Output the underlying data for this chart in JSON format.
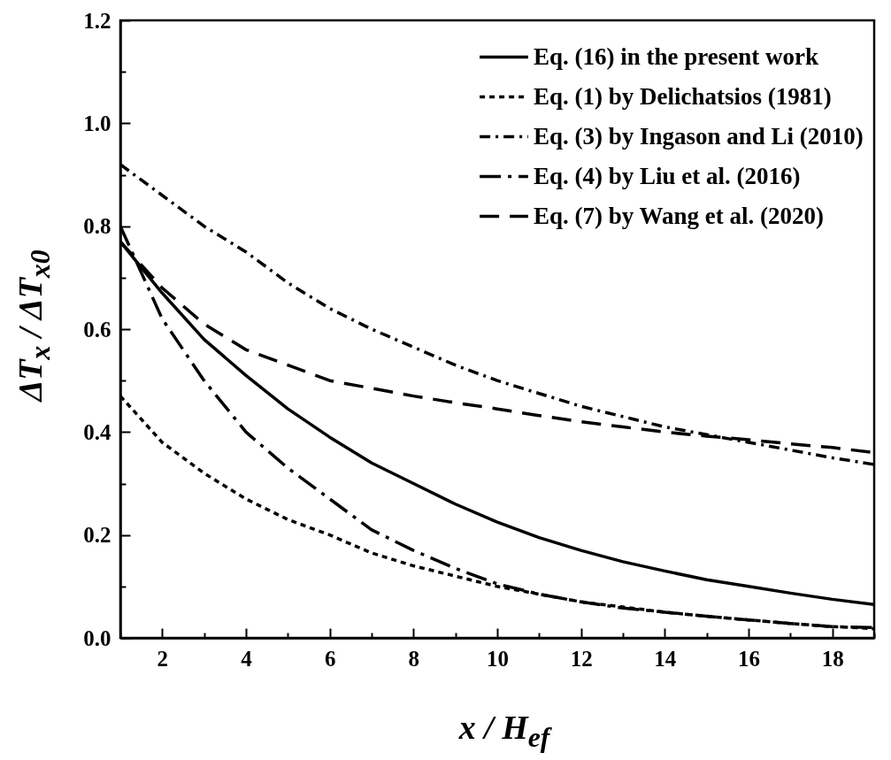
{
  "chart_data": {
    "type": "line",
    "xlabel": "x / H$_{ef}$",
    "ylabel": "ΔT$_{x}$ / ΔT$_{x0}$",
    "xlim": [
      1,
      19
    ],
    "ylim": [
      0,
      1.2
    ],
    "xticks": [
      {
        "value": 1,
        "label": null
      },
      2,
      {
        "value": 3,
        "label": null
      },
      4,
      {
        "value": 5,
        "label": null
      },
      6,
      {
        "value": 7,
        "label": null
      },
      8,
      {
        "value": 9,
        "label": null
      },
      10,
      {
        "value": 11,
        "label": null
      },
      12,
      {
        "value": 13,
        "label": null
      },
      14,
      {
        "value": 15,
        "label": null
      },
      16,
      {
        "value": 17,
        "label": null
      },
      18,
      {
        "value": 19,
        "label": null
      }
    ],
    "yticks": [
      {
        "value": 0,
        "label": "0.0"
      },
      {
        "value": 0.1,
        "label": null
      },
      0.2,
      {
        "value": 0.3,
        "label": null
      },
      0.4,
      {
        "value": 0.5,
        "label": null
      },
      0.6,
      {
        "value": 0.7,
        "label": null
      },
      0.8,
      {
        "value": 0.9,
        "label": null
      },
      {
        "value": 1,
        "label": "1.0"
      },
      {
        "value": 1.1,
        "label": null
      },
      1.2
    ],
    "legend": "top right",
    "grid": false,
    "x": [
      1,
      2,
      3,
      4,
      5,
      6,
      7,
      8,
      9,
      10,
      11,
      12,
      13,
      14,
      15,
      16,
      17,
      18,
      19
    ],
    "series": [
      {
        "name": "Eq. (16) in the present work",
        "color": "#000000",
        "line_style": "solid",
        "values": [
          0.77,
          0.67,
          0.58,
          0.51,
          0.445,
          0.39,
          0.34,
          0.3,
          0.26,
          0.225,
          0.195,
          0.17,
          0.148,
          0.13,
          0.113,
          0.1,
          0.087,
          0.075,
          0.065
        ]
      },
      {
        "name": "Eq. (1) by Delichatsios (1981)",
        "color": "#000000",
        "line_style": "dotted",
        "values": [
          0.47,
          0.38,
          0.32,
          0.27,
          0.23,
          0.2,
          0.165,
          0.14,
          0.12,
          0.1,
          0.085,
          0.07,
          0.06,
          0.05,
          0.042,
          0.035,
          0.028,
          0.022,
          0.018
        ]
      },
      {
        "name": "Eq. (3) by Ingason and Li (2010)",
        "color": "#000000",
        "line_style": "dashdot",
        "values": [
          0.92,
          0.86,
          0.8,
          0.75,
          0.69,
          0.64,
          0.6,
          0.565,
          0.53,
          0.5,
          0.475,
          0.45,
          0.43,
          0.41,
          0.395,
          0.38,
          0.365,
          0.35,
          0.337
        ]
      },
      {
        "name": "Eq. (4) by Liu et al. (2016)",
        "color": "#000000",
        "line_style": "longdashdot",
        "values": [
          0.8,
          0.62,
          0.5,
          0.4,
          0.33,
          0.27,
          0.21,
          0.17,
          0.135,
          0.105,
          0.085,
          0.07,
          0.058,
          0.05,
          0.042,
          0.035,
          0.028,
          0.022,
          0.02
        ]
      },
      {
        "name": "Eq. (7) by Wang et al. (2020)",
        "color": "#000000",
        "line_style": "dashed",
        "values": [
          0.77,
          0.68,
          0.61,
          0.56,
          0.53,
          0.5,
          0.485,
          0.47,
          0.457,
          0.445,
          0.432,
          0.42,
          0.41,
          0.4,
          0.392,
          0.385,
          0.377,
          0.37,
          0.36
        ]
      }
    ]
  }
}
